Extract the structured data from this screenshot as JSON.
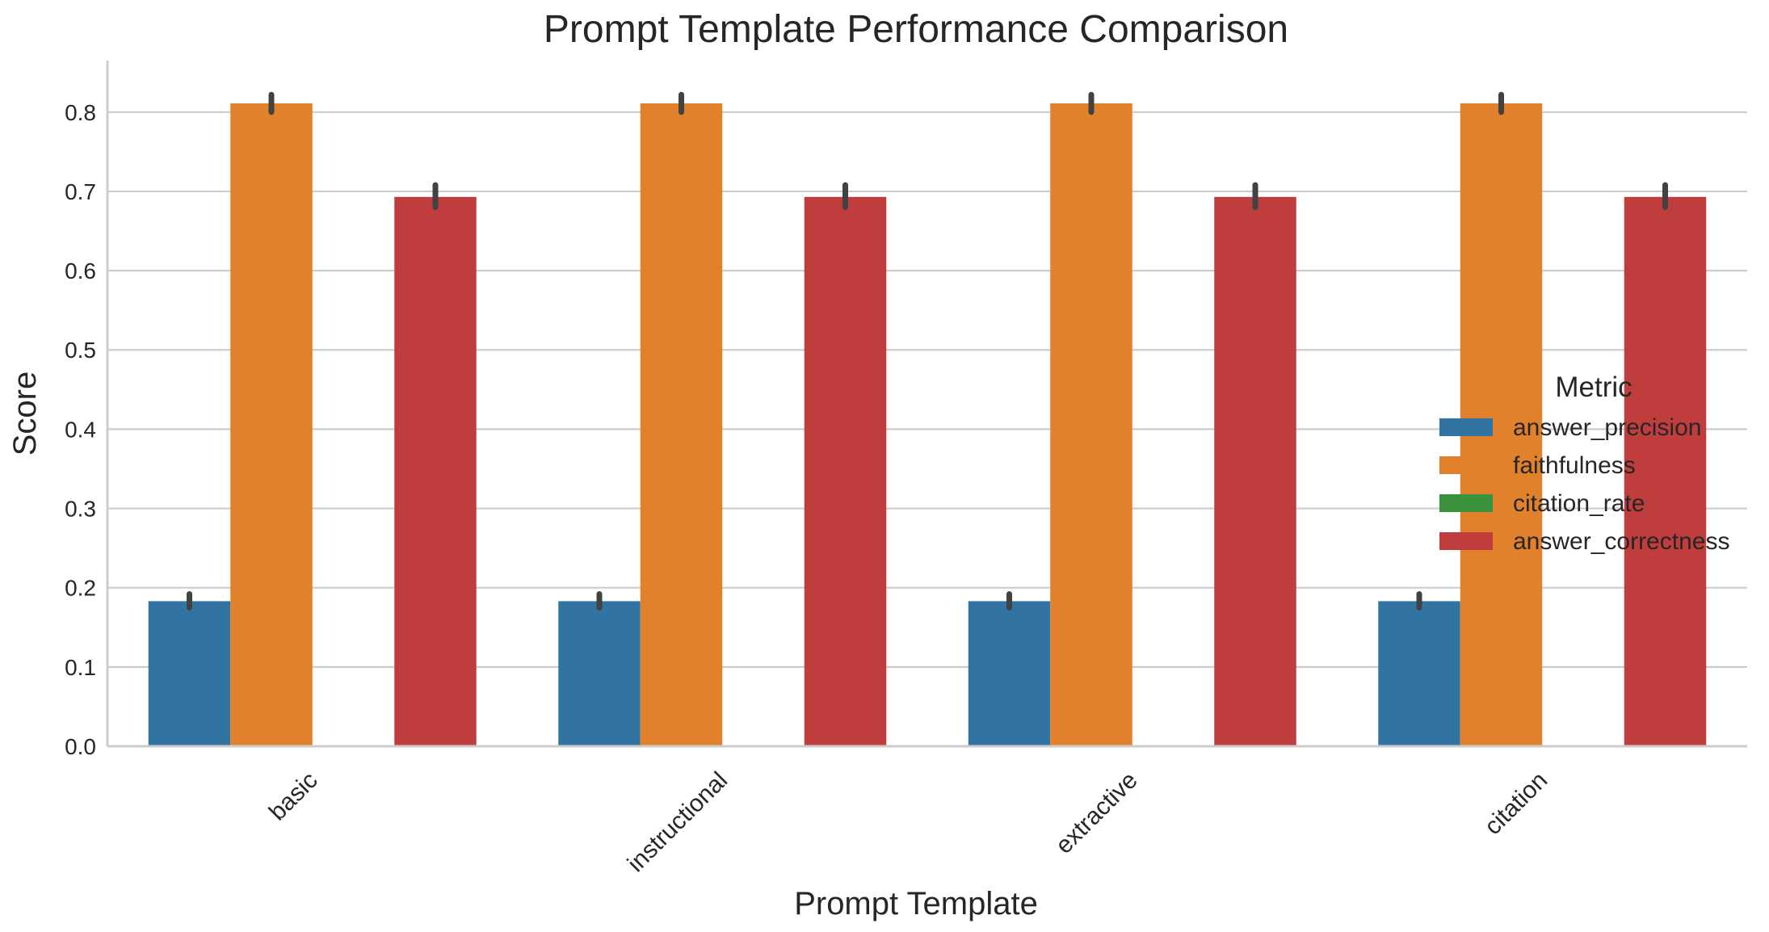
{
  "chart_data": {
    "type": "bar",
    "title": "Prompt Template Performance Comparison",
    "xlabel": "Prompt Template",
    "ylabel": "Score",
    "categories": [
      "basic",
      "instructional",
      "extractive",
      "citation"
    ],
    "ylim": [
      0,
      0.865
    ],
    "yticks": [
      "0.0",
      "0.1",
      "0.2",
      "0.3",
      "0.4",
      "0.5",
      "0.6",
      "0.7",
      "0.8"
    ],
    "grid": true,
    "legend": {
      "title": "Metric",
      "placement": "right"
    },
    "series": [
      {
        "name": "answer_precision",
        "color": "#3274a1",
        "values": [
          0.183,
          0.183,
          0.183,
          0.183
        ],
        "err_low": [
          0.175,
          0.175,
          0.175,
          0.175
        ],
        "err_high": [
          0.192,
          0.192,
          0.192,
          0.192
        ]
      },
      {
        "name": "faithfulness",
        "color": "#e1812c",
        "values": [
          0.811,
          0.811,
          0.811,
          0.811
        ],
        "err_low": [
          0.8,
          0.8,
          0.8,
          0.8
        ],
        "err_high": [
          0.822,
          0.822,
          0.822,
          0.822
        ]
      },
      {
        "name": "citation_rate",
        "color": "#3a923a",
        "values": [
          0.0,
          0.0,
          0.0,
          0.0
        ],
        "err_low": [
          0.0,
          0.0,
          0.0,
          0.0
        ],
        "err_high": [
          0.0,
          0.0,
          0.0,
          0.0
        ]
      },
      {
        "name": "answer_correctness",
        "color": "#c03d3e",
        "values": [
          0.693,
          0.693,
          0.693,
          0.693
        ],
        "err_low": [
          0.68,
          0.68,
          0.68,
          0.68
        ],
        "err_high": [
          0.708,
          0.708,
          0.708,
          0.708
        ]
      }
    ]
  }
}
